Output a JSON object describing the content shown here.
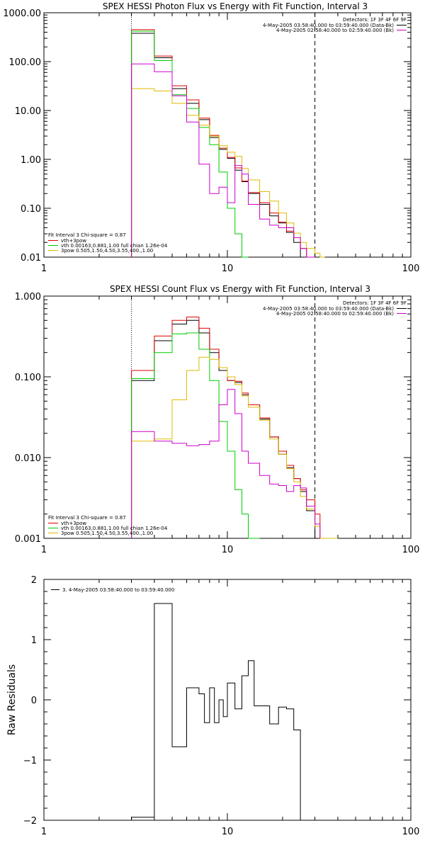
{
  "chart_data": [
    {
      "type": "line",
      "title": "SPEX HESSI Photon Flux vs Energy with Fit Function, Interval 3",
      "x_scale": "log",
      "y_scale": "log",
      "xlim": [
        1,
        100
      ],
      "ylim": [
        0.01,
        1000
      ],
      "xticks": [
        "1",
        "10",
        "100"
      ],
      "yticks": [
        "1000.00",
        "100.00",
        "10.00",
        "1.00",
        "0.10",
        "0.01"
      ],
      "vlines": [
        {
          "x": 3,
          "style": "dotted"
        },
        {
          "x": 30,
          "style": "dashed"
        }
      ],
      "legend_top": [
        {
          "text": "Detectors: 1F 3F 4F 6F 9F",
          "color": null
        },
        {
          "text": "4-May-2005 03:58:40.000 to 03:59:40.000 (Data-Bk)",
          "color": "#000000"
        },
        {
          "text": "4-May-2005 02:58:40.000 to 02:59:40.000 (Bk)",
          "color": "#cc00cc"
        }
      ],
      "legend_bottom": [
        {
          "text": "Fit Interval 3   Chi-square = 0.87",
          "color": null
        },
        {
          "text": "vth+3pow",
          "color": "#dd0000"
        },
        {
          "text": "vth 0.00163,0.881,1.00  full chian 1.26e-04",
          "color": "#00cc00"
        },
        {
          "text": "3pow 0.505,1.50,4.50,3.55,400.,1.00",
          "color": "#ddbb00"
        }
      ],
      "edges": [
        3,
        4,
        5,
        6,
        7,
        8,
        9,
        10,
        11,
        12,
        13,
        15,
        17,
        19,
        21,
        23,
        25,
        27,
        30,
        32,
        34,
        37
      ],
      "series": [
        {
          "name": "4-May-2005 03:58:40.000 to 03:59:40.000 (Data-Bk)",
          "color": "#000000",
          "values": [
            380,
            120,
            28,
            14,
            6.5,
            2.8,
            1.6,
            1.05,
            0.6,
            0.35,
            0.2,
            0.12,
            0.07,
            0.05,
            0.032,
            0.02,
            0.01,
            0.006,
            null,
            null,
            null
          ]
        },
        {
          "name": "vth+3pow",
          "color": "#dd0000",
          "values": [
            450,
            130,
            32,
            16.5,
            7,
            3.1,
            1.7,
            1.1,
            0.67,
            0.36,
            0.21,
            0.13,
            0.08,
            0.052,
            0.034,
            0.025,
            0.015,
            0.01,
            null,
            null,
            null
          ]
        },
        {
          "name": "vth",
          "color": "#00cc00",
          "values": [
            420,
            105,
            21,
            11,
            4.5,
            2.0,
            0.55,
            0.1,
            0.03,
            0.01,
            null,
            null,
            null,
            null,
            null,
            null,
            null,
            null,
            null,
            null,
            null
          ]
        },
        {
          "name": "3pow",
          "color": "#ddbb00",
          "values": [
            28,
            25,
            14,
            8,
            5,
            3,
            1.9,
            1.4,
            1.15,
            0.65,
            0.38,
            0.22,
            0.14,
            0.08,
            0.05,
            0.031,
            0.02,
            0.015,
            0.012,
            0.01,
            null
          ]
        },
        {
          "name": "4-May-2005 02:58:40.000 to 02:59:40.000 (Bk)",
          "color": "#cc00cc",
          "values": [
            90,
            62,
            20,
            5.8,
            0.8,
            0.2,
            0.27,
            0.13,
            0.75,
            0.5,
            0.12,
            0.06,
            0.045,
            0.04,
            0.04,
            0.025,
            0.015,
            0.01,
            null,
            null,
            null
          ]
        }
      ]
    },
    {
      "type": "line",
      "title": "SPEX HESSI Count Flux vs Energy with Fit Function, Interval 3",
      "x_scale": "log",
      "y_scale": "log",
      "xlim": [
        1,
        100
      ],
      "ylim": [
        0.001,
        1
      ],
      "xticks": [
        "1",
        "10",
        "100"
      ],
      "yticks": [
        "1.000",
        "0.100",
        "0.010",
        "0.001"
      ],
      "vlines": [
        {
          "x": 3,
          "style": "dotted"
        },
        {
          "x": 30,
          "style": "dashed"
        }
      ],
      "legend_top": [
        {
          "text": "Detectors: 1F 3F 4F 6F 9F",
          "color": null
        },
        {
          "text": "4-May-2005 03:58:40.000 to 03:59:40.000 (Data-Bk)",
          "color": "#000000"
        },
        {
          "text": "4-May-2005 02:58:40.000 to 02:59:40.000 (Bk)",
          "color": "#cc00cc"
        }
      ],
      "legend_bottom": [
        {
          "text": "Fit Interval 3   Chi-square = 0.87",
          "color": null
        },
        {
          "text": "vth+3pow",
          "color": "#dd0000"
        },
        {
          "text": "vth 0.00163,0.881,1.00  full chian 1.26e-04",
          "color": "#00cc00"
        },
        {
          "text": "3pow 0.505,1.50,4.50,3.55,400.,1.00",
          "color": "#ddbb00"
        }
      ],
      "edges": [
        3,
        4,
        5,
        6,
        7,
        8,
        9,
        10,
        11,
        12,
        13,
        15,
        17,
        19,
        21,
        23,
        25,
        27,
        30,
        32,
        34,
        37,
        40
      ],
      "series": [
        {
          "name": "4-May-2005 03:58:40.000 to 03:59:40.000 (Data-Bk)",
          "color": "#000000",
          "values": [
            0.09,
            0.28,
            0.45,
            0.5,
            0.35,
            0.2,
            0.12,
            0.09,
            0.085,
            0.06,
            0.045,
            0.03,
            0.018,
            0.011,
            0.0075,
            0.0055,
            0.0038,
            0.0022,
            0.001,
            null,
            null,
            null
          ]
        },
        {
          "name": "vth+3pow",
          "color": "#dd0000",
          "values": [
            0.12,
            0.32,
            0.5,
            0.55,
            0.4,
            0.22,
            0.13,
            0.09,
            0.088,
            0.063,
            0.045,
            0.031,
            0.018,
            0.012,
            0.008,
            0.0055,
            0.004,
            0.003,
            0.002,
            null,
            null,
            null
          ]
        },
        {
          "name": "vth",
          "color": "#00cc00",
          "values": [
            0.095,
            0.2,
            0.34,
            0.35,
            0.22,
            0.09,
            0.028,
            0.012,
            0.004,
            0.002,
            0.001,
            null,
            null,
            null,
            null,
            null,
            null,
            null,
            null,
            null,
            null,
            null
          ]
        },
        {
          "name": "3pow",
          "color": "#ddbb00",
          "values": [
            0.016,
            0.017,
            0.052,
            0.12,
            0.175,
            0.165,
            0.13,
            0.1,
            0.08,
            0.058,
            0.042,
            0.029,
            0.017,
            0.011,
            0.0073,
            0.005,
            0.0033,
            0.0023,
            0.0014,
            0.001,
            0.001,
            0.001
          ]
        },
        {
          "name": "4-May-2005 02:58:40.000 to 02:59:40.000 (Bk)",
          "color": "#cc00cc",
          "values": [
            0.021,
            0.016,
            0.015,
            0.014,
            0.0145,
            0.016,
            0.045,
            0.07,
            0.035,
            0.012,
            0.0085,
            0.006,
            0.0047,
            0.0045,
            0.0038,
            0.0045,
            0.0042,
            0.0025,
            0.0015,
            null,
            null,
            null
          ]
        }
      ]
    },
    {
      "type": "line",
      "title": "",
      "ylabel": "Raw Residuals",
      "x_scale": "log",
      "y_scale": "linear",
      "xlim": [
        1,
        100
      ],
      "ylim": [
        -2,
        2
      ],
      "xticks": [
        "1",
        "10",
        "100"
      ],
      "yticks": [
        "2",
        "1",
        "0",
        "−1",
        "−2"
      ],
      "legend_top": [
        {
          "text": "3.  4-May-2005 03:58:40.000 to 03:59:40.000",
          "color": "#000000"
        }
      ],
      "edges": [
        3,
        4,
        4.5,
        5,
        6,
        7,
        7.5,
        8,
        8.5,
        9,
        9.5,
        10,
        11,
        12,
        13,
        14,
        15,
        17,
        19,
        21,
        23,
        25,
        27,
        30
      ],
      "series": [
        {
          "name": "3.  4-May-2005 03:58:40.000 to 03:59:40.000",
          "color": "#000000",
          "values": [
            -1.95,
            1.6,
            1.6,
            -0.78,
            0.2,
            0.1,
            -0.38,
            0.2,
            -0.38,
            0.0,
            -0.28,
            0.28,
            -0.15,
            0.4,
            0.65,
            -0.1,
            -0.1,
            -0.4,
            -0.12,
            -0.15,
            -0.5,
            -2.0,
            null
          ]
        }
      ]
    }
  ]
}
